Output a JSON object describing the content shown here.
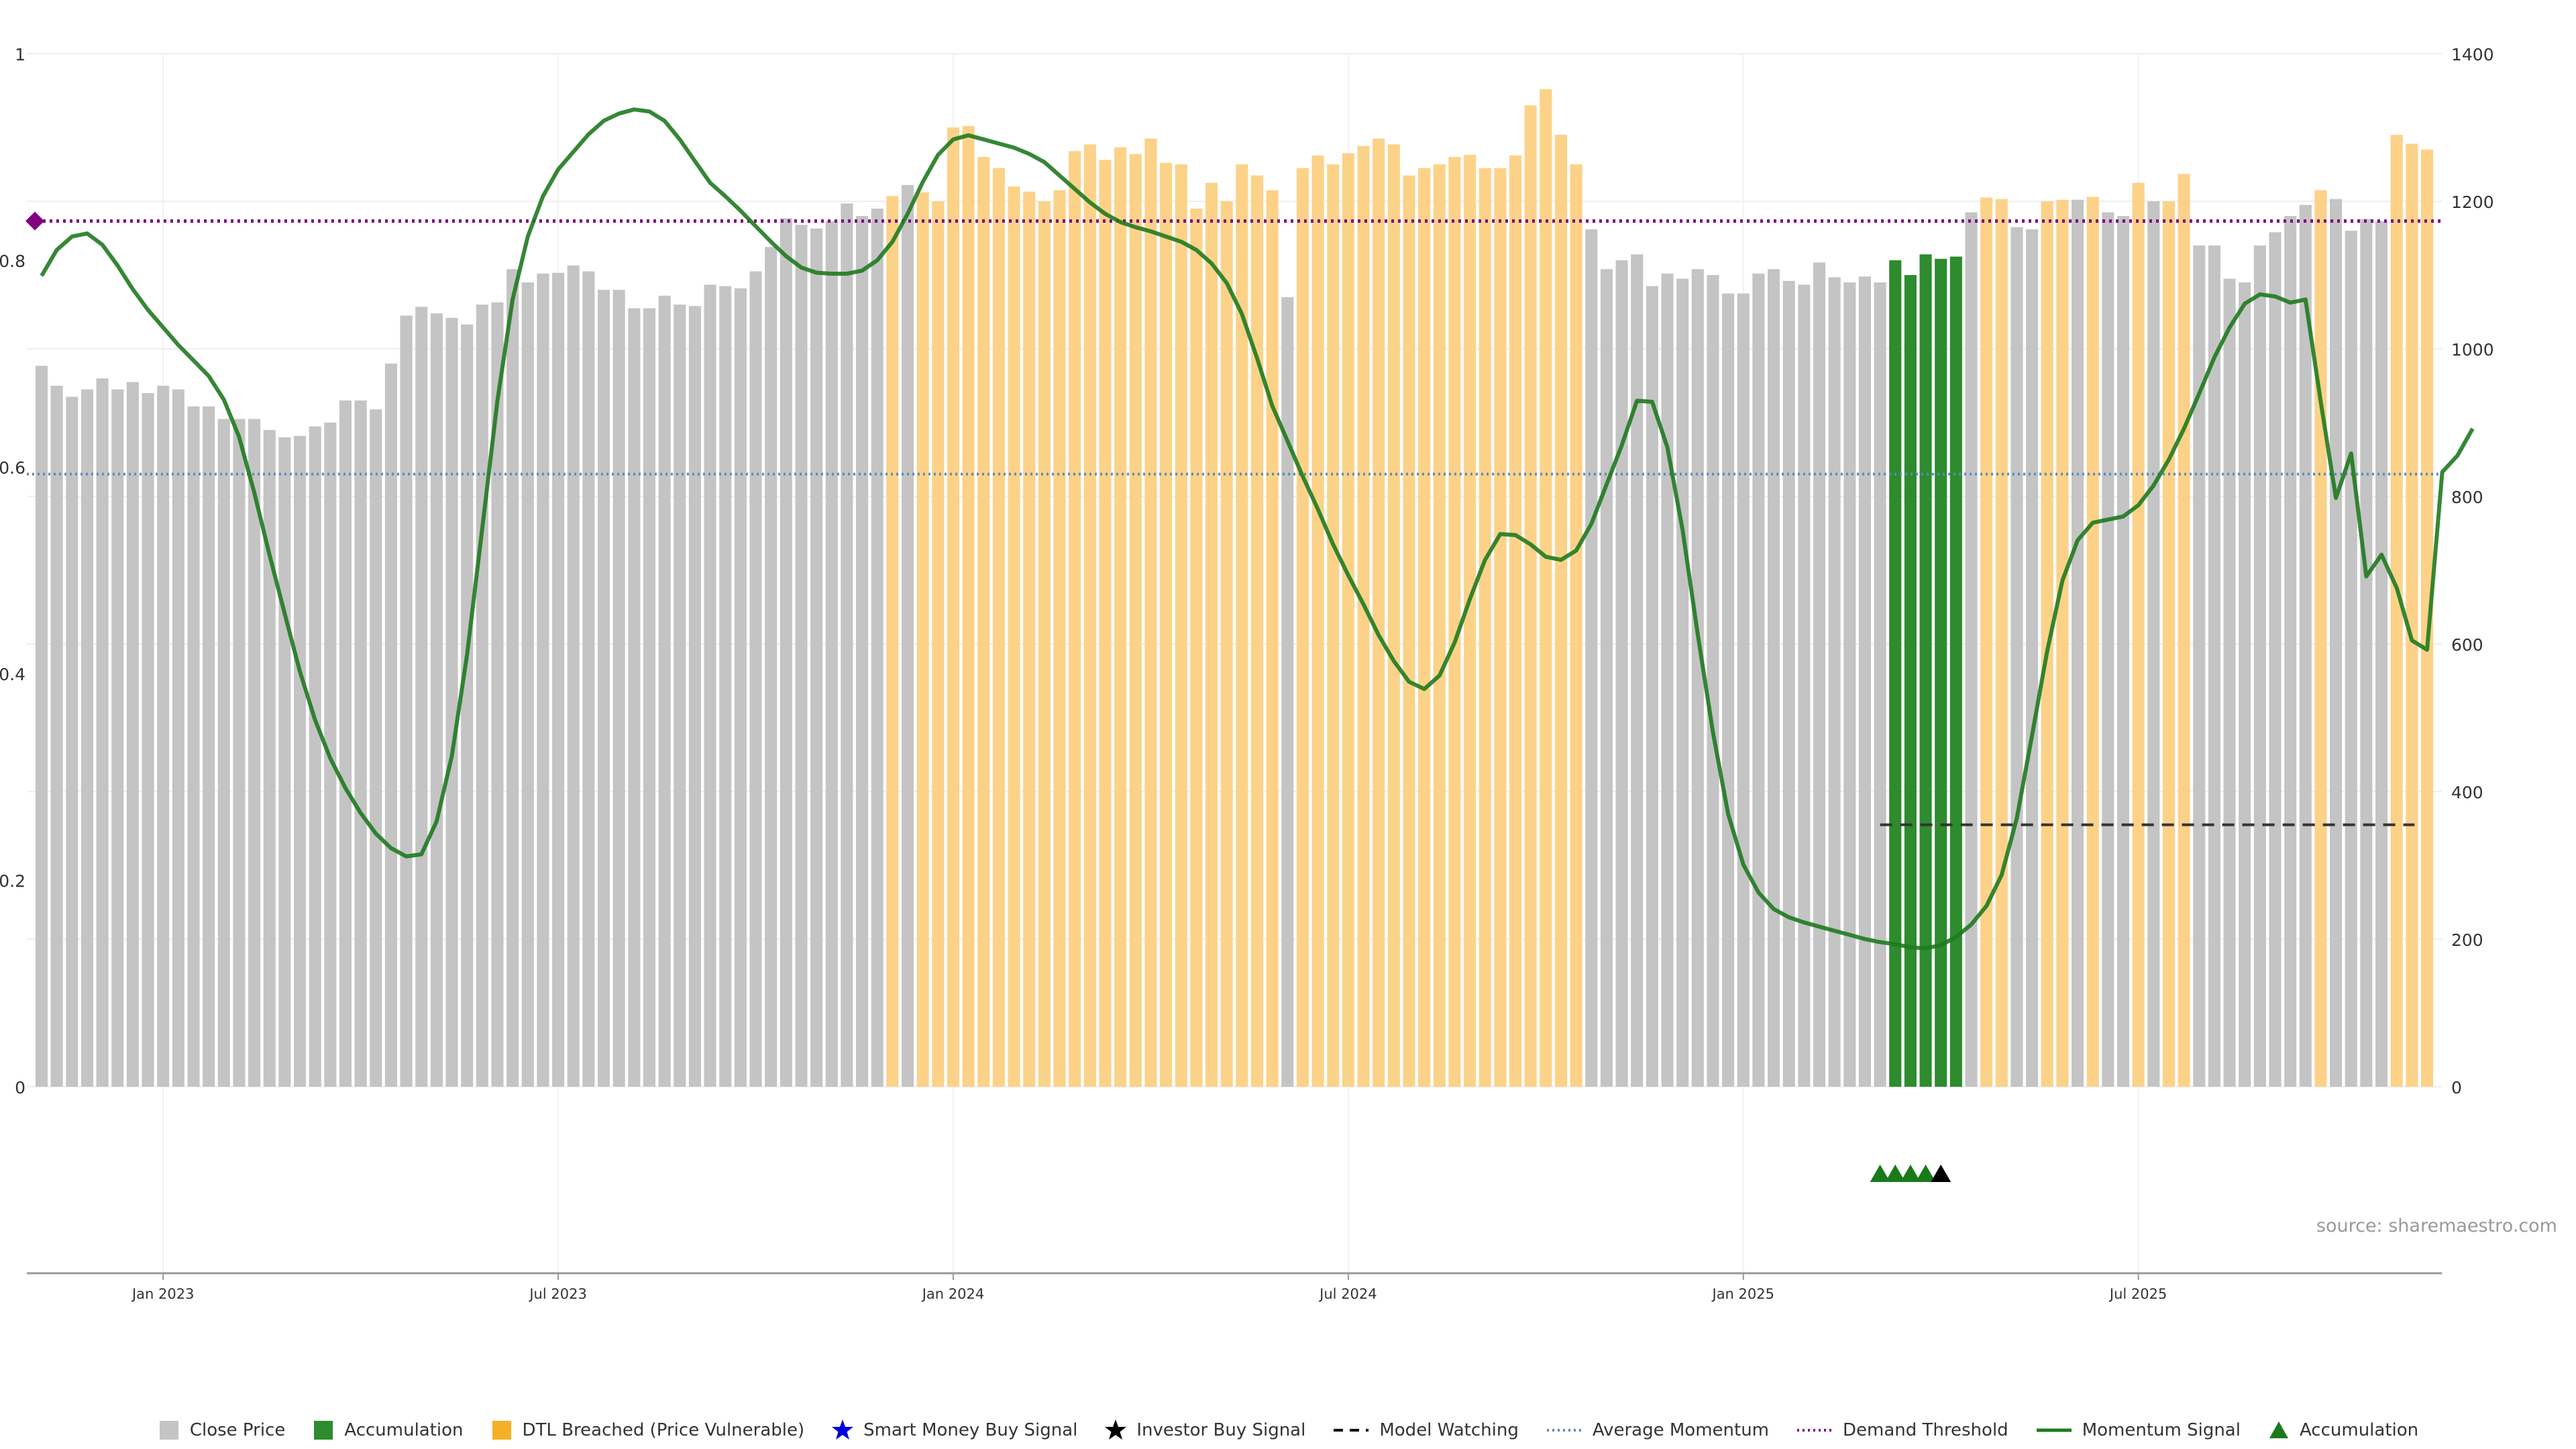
{
  "source_text": "source: sharemaestro.com",
  "colors": {
    "close_price": "#c4c4c4",
    "accumulation": "#2e8b2e",
    "dtl_breached": "#fcd289",
    "momentum": "#1f7a1f",
    "demand_threshold": "#800080",
    "average_momentum": "#5b8db8",
    "model_watching": "#333333",
    "grid": "#eeeeee"
  },
  "chart_data": {
    "type": "bar",
    "y_left": {
      "lim": [
        0,
        1
      ],
      "ticks": [
        "0",
        "0.2",
        "0.4",
        "0.6",
        "0.8",
        "1"
      ]
    },
    "y_right": {
      "lim": [
        0,
        1400
      ],
      "ticks": [
        "0",
        "200",
        "400",
        "600",
        "800",
        "1000",
        "1200",
        "1400"
      ]
    },
    "x_ticks": [
      {
        "label": "Jan 2023",
        "index": 8
      },
      {
        "label": "Jul 2023",
        "index": 34
      },
      {
        "label": "Jan 2024",
        "index": 60
      },
      {
        "label": "Jul 2024",
        "index": 86
      },
      {
        "label": "Jan 2025",
        "index": 112
      },
      {
        "label": "Jul 2025",
        "index": 138
      }
    ],
    "close_price": [
      977,
      950,
      935,
      945,
      960,
      945,
      955,
      940,
      950,
      945,
      922,
      922,
      905,
      905,
      905,
      890,
      880,
      882,
      895,
      900,
      930,
      930,
      918,
      980,
      1045,
      1057,
      1048,
      1042,
      1033,
      1060,
      1063,
      1108,
      1090,
      1102,
      1103,
      1113,
      1105,
      1080,
      1080,
      1055,
      1055,
      1072,
      1060,
      1058,
      1087,
      1085,
      1082,
      1105,
      1138,
      1177,
      1168,
      1163,
      1173,
      1197,
      1180,
      1190,
      1207,
      1222,
      1212,
      1200,
      1300,
      1302,
      1260,
      1245,
      1220,
      1213,
      1200,
      1215,
      1268,
      1277,
      1256,
      1273,
      1264,
      1285,
      1252,
      1250,
      1190,
      1225,
      1200,
      1250,
      1235,
      1215,
      1070,
      1245,
      1262,
      1250,
      1265,
      1275,
      1285,
      1277,
      1235,
      1245,
      1250,
      1260,
      1263,
      1245,
      1245,
      1262,
      1330,
      1352,
      1290,
      1250,
      1162,
      1108,
      1120,
      1128,
      1085,
      1102,
      1095,
      1108,
      1100,
      1075,
      1075,
      1102,
      1108,
      1092,
      1087,
      1117,
      1097,
      1090,
      1098,
      1090,
      1120,
      1100,
      1128,
      1122,
      1125,
      1185,
      1205,
      1203,
      1165,
      1162,
      1200,
      1202,
      1202,
      1206,
      1185,
      1180,
      1225,
      1200,
      1200,
      1237,
      1140,
      1140,
      1095,
      1090,
      1140,
      1158,
      1180,
      1195,
      1215,
      1203,
      1160,
      1176,
      1173,
      1290,
      1278,
      1270
    ],
    "bar_category": [
      "c",
      "c",
      "c",
      "c",
      "c",
      "c",
      "c",
      "c",
      "c",
      "c",
      "c",
      "c",
      "c",
      "c",
      "c",
      "c",
      "c",
      "c",
      "c",
      "c",
      "c",
      "c",
      "c",
      "c",
      "c",
      "c",
      "c",
      "c",
      "c",
      "c",
      "c",
      "c",
      "c",
      "c",
      "c",
      "c",
      "c",
      "c",
      "c",
      "c",
      "c",
      "c",
      "c",
      "c",
      "c",
      "c",
      "c",
      "c",
      "c",
      "c",
      "c",
      "c",
      "c",
      "c",
      "c",
      "c",
      "d",
      "c",
      "d",
      "d",
      "d",
      "d",
      "d",
      "d",
      "d",
      "d",
      "d",
      "d",
      "d",
      "d",
      "d",
      "d",
      "d",
      "d",
      "d",
      "d",
      "d",
      "d",
      "d",
      "d",
      "d",
      "d",
      "c",
      "d",
      "d",
      "d",
      "d",
      "d",
      "d",
      "d",
      "d",
      "d",
      "d",
      "d",
      "d",
      "d",
      "d",
      "d",
      "d",
      "d",
      "d",
      "d",
      "c",
      "c",
      "c",
      "c",
      "c",
      "c",
      "c",
      "c",
      "c",
      "c",
      "c",
      "c",
      "c",
      "c",
      "c",
      "c",
      "c",
      "c",
      "c",
      "c",
      "a",
      "a",
      "a",
      "a",
      "a",
      "c",
      "d",
      "d",
      "c",
      "c",
      "d",
      "d",
      "c",
      "d",
      "c",
      "c",
      "d",
      "c",
      "d",
      "d",
      "c",
      "c",
      "c",
      "c",
      "c",
      "c",
      "c",
      "c",
      "d",
      "c",
      "c",
      "c",
      "c",
      "d",
      "d",
      "d"
    ],
    "momentum": [
      0.785,
      0.81,
      0.823,
      0.826,
      0.815,
      0.795,
      0.772,
      0.752,
      0.735,
      0.718,
      0.703,
      0.688,
      0.665,
      0.629,
      0.575,
      0.515,
      0.458,
      0.402,
      0.355,
      0.318,
      0.289,
      0.265,
      0.245,
      0.231,
      0.223,
      0.225,
      0.257,
      0.32,
      0.418,
      0.54,
      0.664,
      0.762,
      0.823,
      0.862,
      0.888,
      0.905,
      0.922,
      0.935,
      0.942,
      0.946,
      0.944,
      0.935,
      0.917,
      0.896,
      0.875,
      0.862,
      0.848,
      0.833,
      0.818,
      0.804,
      0.793,
      0.788,
      0.787,
      0.787,
      0.79,
      0.8,
      0.818,
      0.845,
      0.876,
      0.902,
      0.917,
      0.921,
      0.917,
      0.913,
      0.909,
      0.903,
      0.895,
      0.882,
      0.869,
      0.856,
      0.845,
      0.837,
      0.832,
      0.828,
      0.823,
      0.818,
      0.81,
      0.797,
      0.778,
      0.748,
      0.705,
      0.659,
      0.625,
      0.591,
      0.559,
      0.525,
      0.495,
      0.467,
      0.437,
      0.412,
      0.392,
      0.385,
      0.398,
      0.43,
      0.472,
      0.51,
      0.535,
      0.534,
      0.525,
      0.513,
      0.51,
      0.519,
      0.545,
      0.583,
      0.621,
      0.664,
      0.663,
      0.619,
      0.539,
      0.438,
      0.343,
      0.264,
      0.215,
      0.188,
      0.172,
      0.164,
      0.159,
      0.155,
      0.151,
      0.147,
      0.143,
      0.14,
      0.138,
      0.135,
      0.134,
      0.137,
      0.145,
      0.157,
      0.175,
      0.205,
      0.26,
      0.34,
      0.422,
      0.49,
      0.529,
      0.546,
      0.549,
      0.552,
      0.563,
      0.582,
      0.607,
      0.637,
      0.671,
      0.706,
      0.735,
      0.758,
      0.767,
      0.765,
      0.759,
      0.762,
      0.663,
      0.57,
      0.613,
      0.494,
      0.515,
      0.483,
      0.432,
      0.423,
      0.595,
      0.611,
      0.637
    ],
    "demand_threshold": 0.838,
    "average_momentum": 0.593,
    "model_watching": {
      "value_right_axis": 355,
      "from_index": 121,
      "to_index": 156
    },
    "markers": [
      {
        "type": "accumulation",
        "index": 121
      },
      {
        "type": "accumulation",
        "index": 122
      },
      {
        "type": "accumulation",
        "index": 123
      },
      {
        "type": "accumulation",
        "index": 124
      },
      {
        "type": "investor_buy",
        "index": 125
      }
    ],
    "legend": [
      {
        "label": "Close Price",
        "symbol": "square",
        "color": "#c4c4c4"
      },
      {
        "label": "Accumulation",
        "symbol": "square",
        "color": "#2e8b2e"
      },
      {
        "label": "DTL Breached (Price Vulnerable)",
        "symbol": "square",
        "color": "#f5b027"
      },
      {
        "label": "Smart Money Buy Signal",
        "symbol": "star",
        "color": "#0000dd"
      },
      {
        "label": "Investor Buy Signal",
        "symbol": "star",
        "color": "#000000"
      },
      {
        "label": "Model Watching",
        "symbol": "dash",
        "color": "#000000"
      },
      {
        "label": "Average Momentum",
        "symbol": "dot",
        "color": "#5b8db8"
      },
      {
        "label": "Demand Threshold",
        "symbol": "dot",
        "color": "#800080"
      },
      {
        "label": "Momentum Signal",
        "symbol": "line",
        "color": "#1f7a1f"
      },
      {
        "label": "Accumulation",
        "symbol": "triangle",
        "color": "#1a7a1a"
      }
    ]
  }
}
